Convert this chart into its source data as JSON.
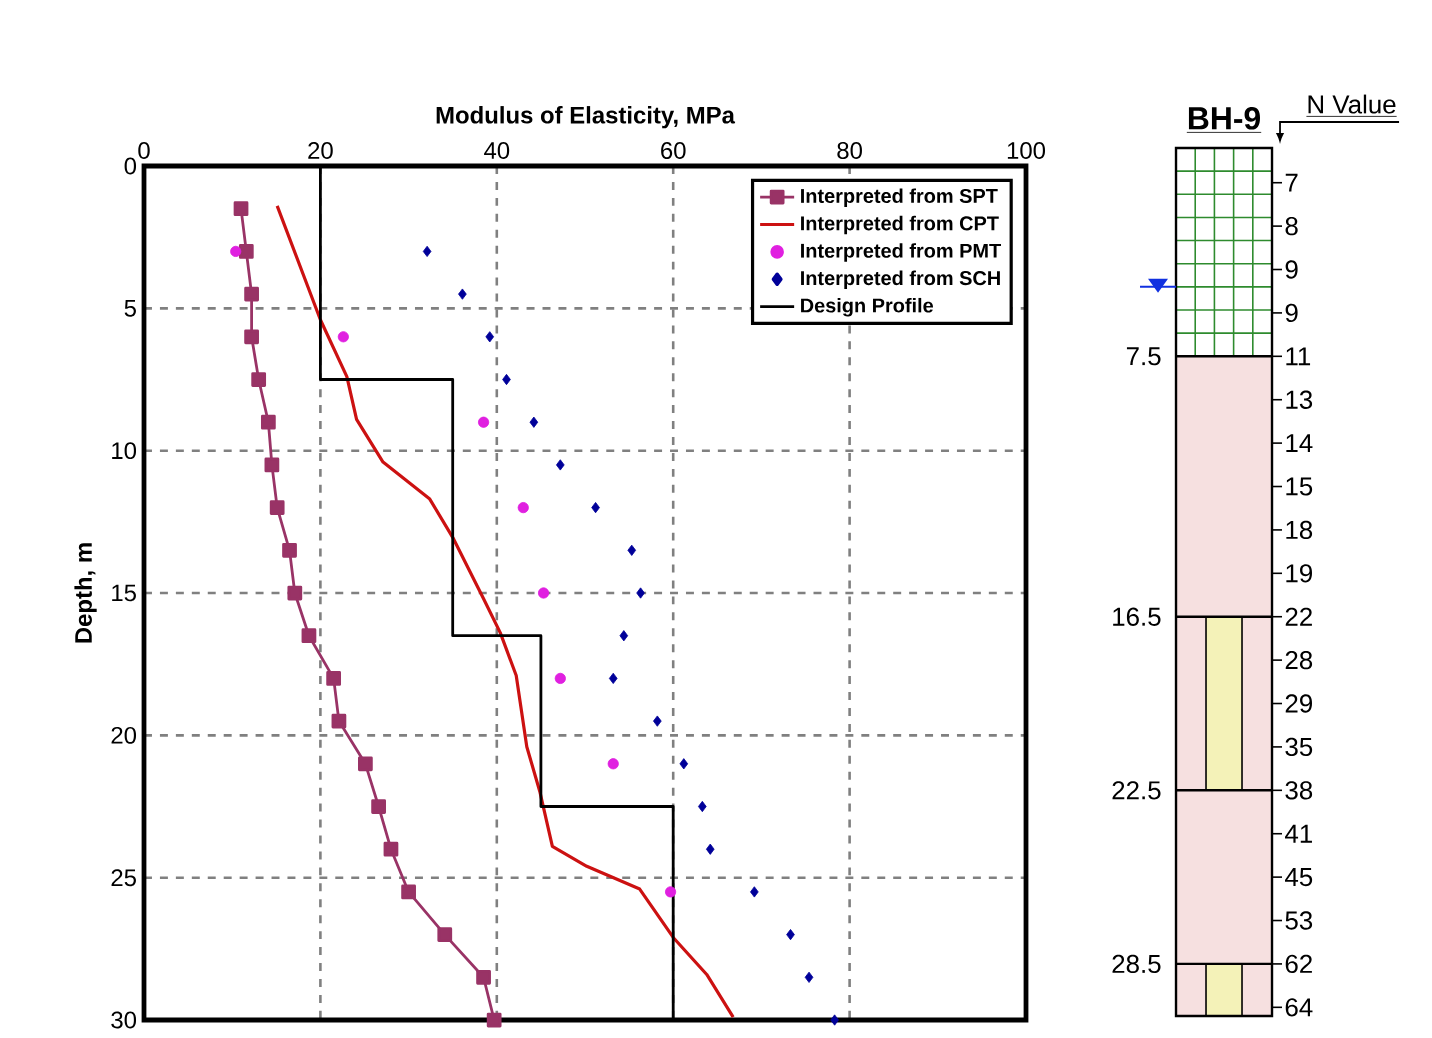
{
  "chart_data": [
    {
      "type": "line",
      "xlabel": "Modulus of Elasticity, MPa",
      "ylabel": "Depth, m",
      "xlim": [
        0,
        100
      ],
      "xticks": [
        0,
        20,
        40,
        60,
        80,
        100
      ],
      "ylim": [
        30,
        0
      ],
      "yticks": [
        0,
        5,
        10,
        15,
        20,
        25,
        30
      ],
      "grid": true,
      "legend": "top right",
      "series": [
        {
          "name": "Interpreted from SPT",
          "type": "line",
          "marker": "square",
          "color": "#993366",
          "x": [
            11,
            11.6,
            12.2,
            12.2,
            13,
            14.1,
            14.5,
            15.1,
            16.5,
            17.1,
            18.7,
            21.5,
            22.1,
            25.1,
            26.6,
            28,
            30,
            34.1,
            38.5,
            39.7
          ],
          "values": [
            1.5,
            3,
            4.5,
            6,
            7.5,
            9,
            10.5,
            12,
            13.5,
            15,
            16.5,
            18,
            19.5,
            21,
            22.5,
            24,
            25.5,
            27,
            28.5,
            30
          ]
        },
        {
          "name": "Interpreted from CPT",
          "type": "line",
          "marker": "none",
          "color": "#cc1111",
          "x": [
            15.1,
            20,
            23,
            24.1,
            27.1,
            32.4,
            35.1,
            38.5,
            40.4,
            42.2,
            43.4,
            44.9,
            46.3,
            50.2,
            56.2,
            60,
            63.8,
            66.8
          ],
          "values": [
            1.4,
            5.4,
            7.4,
            8.9,
            10.4,
            11.7,
            13.1,
            15.2,
            16.4,
            17.9,
            20.4,
            22,
            23.9,
            24.6,
            25.4,
            27.1,
            28.4,
            29.9
          ]
        },
        {
          "name": "Interpreted from PMT",
          "type": "scatter",
          "marker": "circle",
          "color": "#e020e0",
          "x": [
            10.4,
            22.6,
            38.5,
            43,
            45.3,
            47.2,
            53.2,
            59.7
          ],
          "values": [
            3,
            6,
            9,
            12,
            15,
            18,
            21,
            25.5
          ]
        },
        {
          "name": "Interpreted from SCH",
          "type": "scatter",
          "marker": "diamond",
          "color": "#000099",
          "x": [
            32.1,
            36.1,
            39.2,
            41.1,
            44.2,
            47.2,
            51.2,
            55.3,
            56.3,
            54.4,
            53.2,
            58.2,
            61.2,
            63.3,
            64.2,
            69.2,
            73.3,
            75.4,
            78.3
          ],
          "values": [
            3,
            4.5,
            6,
            7.5,
            9,
            10.5,
            12,
            13.5,
            15,
            16.5,
            18,
            19.5,
            21,
            22.5,
            24,
            25.5,
            27,
            28.5,
            30
          ]
        },
        {
          "name": "Design Profile",
          "type": "line",
          "marker": "none",
          "color": "#000000",
          "x": [
            20,
            20,
            35,
            35,
            45,
            45,
            60,
            60
          ],
          "values": [
            0,
            7.5,
            7.5,
            16.5,
            16.5,
            22.5,
            22.5,
            30
          ]
        }
      ]
    },
    {
      "type": "other",
      "title": "BH-9",
      "subtitle": "N Value",
      "categories": [
        "7",
        "8",
        "9",
        "9",
        "11",
        "13",
        "14",
        "15",
        "18",
        "19",
        "22",
        "28",
        "29",
        "35",
        "38",
        "41",
        "45",
        "53",
        "62",
        "64"
      ],
      "annotations": [
        "7.5",
        "16.5",
        "22.5",
        "28.5"
      ]
    }
  ]
}
